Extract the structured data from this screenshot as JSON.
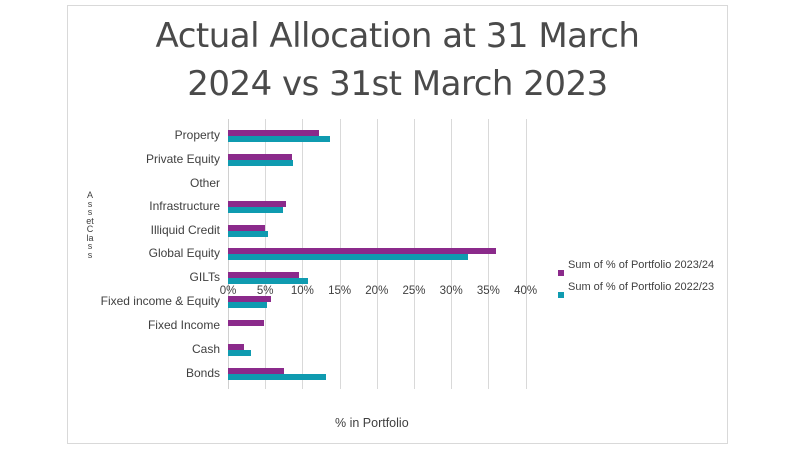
{
  "chart_data": {
    "type": "bar",
    "orientation": "horizontal",
    "title": "Actual Allocation at 31 March 2024 vs 31st March 2023",
    "title_lines": [
      "Actual Allocation at 31 March",
      "2024 vs 31st March 2023"
    ],
    "xlabel": "% in Portfolio",
    "ylabel": "Asset Class",
    "xlim": [
      0,
      40
    ],
    "x_ticks": [
      "0%",
      "5%",
      "10%",
      "15%",
      "20%",
      "25%",
      "30%",
      "35%",
      "40%"
    ],
    "grid": true,
    "legend_position": "right",
    "categories": [
      "Property",
      "Private Equity",
      "Other",
      "Infrastructure",
      "Illiquid Credit",
      "Global Equity",
      "GILTs",
      "Fixed income & Equity",
      "Fixed Income",
      "Cash",
      "Bonds"
    ],
    "series": [
      {
        "name": "Sum of % of Portfolio 2023/24",
        "color": "#8b2a8b",
        "values": [
          12.2,
          8.6,
          0,
          7.8,
          5.0,
          36.0,
          9.6,
          5.8,
          4.8,
          2.1,
          7.5
        ]
      },
      {
        "name": "Sum of % of Portfolio 2022/23",
        "color": "#0f9bb0",
        "values": [
          13.7,
          8.8,
          0,
          7.4,
          5.4,
          32.3,
          10.8,
          5.3,
          0,
          3.1,
          13.2
        ]
      }
    ]
  },
  "colors": {
    "series_2023_24": "#8b2a8b",
    "series_2022_23": "#0f9bb0",
    "grid": "#d9d9d9",
    "text": "#404040"
  }
}
